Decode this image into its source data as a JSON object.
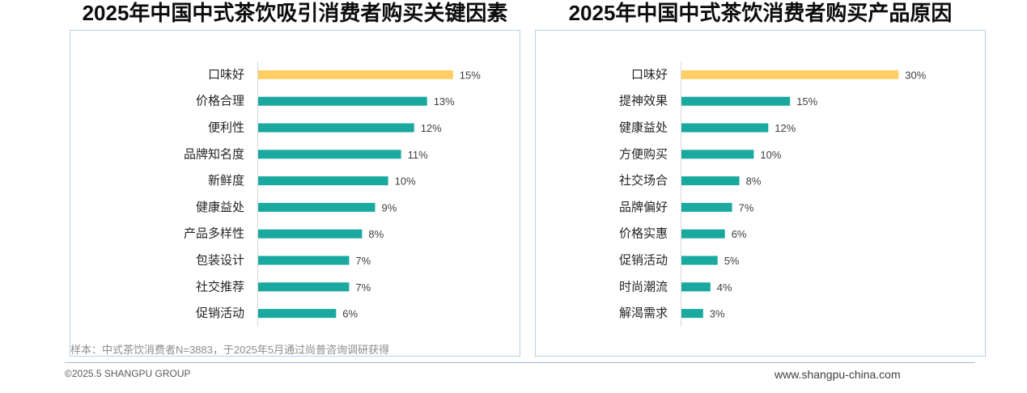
{
  "chart_data": [
    {
      "type": "bar",
      "orientation": "horizontal",
      "title": "2025年中国中式茶饮吸引消费者购买关键因素",
      "categories": [
        "口味好",
        "价格合理",
        "便利性",
        "品牌知名度",
        "新鲜度",
        "健康益处",
        "产品多样性",
        "包装设计",
        "社交推荐",
        "促销活动"
      ],
      "values": [
        15,
        13,
        12,
        11,
        10,
        9,
        8,
        7,
        7,
        6
      ],
      "unit": "%",
      "xlim": [
        0,
        18
      ],
      "grid": false,
      "legend": "none",
      "bar_colors": [
        "#ffcf66",
        "#1aa99f",
        "#1aa99f",
        "#1aa99f",
        "#1aa99f",
        "#1aa99f",
        "#1aa99f",
        "#1aa99f",
        "#1aa99f",
        "#1aa99f"
      ]
    },
    {
      "type": "bar",
      "orientation": "horizontal",
      "title": "2025年中国中式茶饮消费者购买产品原因",
      "categories": [
        "口味好",
        "提神效果",
        "健康益处",
        "方便购买",
        "社交场合",
        "品牌偏好",
        "价格实惠",
        "促销活动",
        "时尚潮流",
        "解渴需求"
      ],
      "values": [
        30,
        15,
        12,
        10,
        8,
        7,
        6,
        5,
        4,
        3
      ],
      "unit": "%",
      "xlim": [
        0,
        36
      ],
      "grid": false,
      "legend": "none",
      "bar_colors": [
        "#ffcf66",
        "#1aa99f",
        "#1aa99f",
        "#1aa99f",
        "#1aa99f",
        "#1aa99f",
        "#1aa99f",
        "#1aa99f",
        "#1aa99f",
        "#1aa99f"
      ]
    }
  ],
  "footnote": "样本：中式茶饮消费者N=3883，于2025年5月通过尚普咨询调研获得",
  "footer": {
    "copyright": "©2025.5 SHANGPU GROUP",
    "website": "www.shangpu-china.com"
  }
}
